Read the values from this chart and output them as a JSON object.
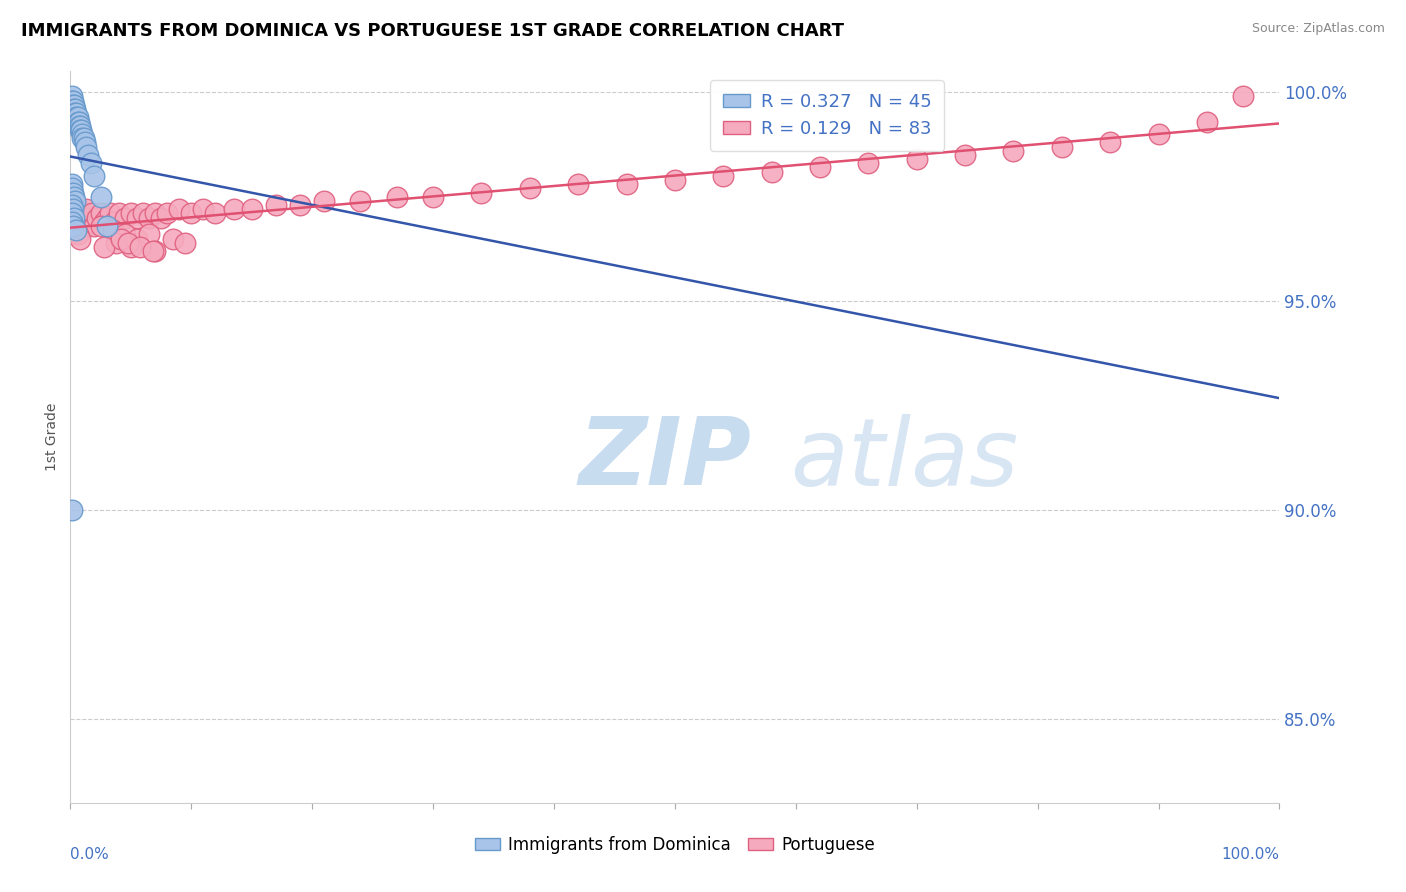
{
  "title": "IMMIGRANTS FROM DOMINICA VS PORTUGUESE 1ST GRADE CORRELATION CHART",
  "source": "Source: ZipAtlas.com",
  "ylabel": "1st Grade",
  "blue_R": 0.327,
  "blue_N": 45,
  "pink_R": 0.129,
  "pink_N": 83,
  "blue_color": "#A8C4E8",
  "pink_color": "#F5AABE",
  "blue_edge_color": "#6699CC",
  "pink_edge_color": "#E06080",
  "blue_line_color": "#3355AA",
  "pink_line_color": "#E05070",
  "legend_labels": [
    "Immigrants from Dominica",
    "Portuguese"
  ],
  "y_min": 0.83,
  "y_max": 1.005,
  "y_ticks": [
    0.85,
    0.9,
    0.95,
    1.0
  ],
  "y_tick_labels": [
    "85.0%",
    "90.0%",
    "95.0%",
    "100.0%"
  ],
  "blue_x": [
    0.001,
    0.001,
    0.001,
    0.002,
    0.002,
    0.002,
    0.002,
    0.003,
    0.003,
    0.003,
    0.004,
    0.004,
    0.004,
    0.005,
    0.005,
    0.006,
    0.006,
    0.007,
    0.007,
    0.008,
    0.008,
    0.009,
    0.01,
    0.01,
    0.011,
    0.012,
    0.013,
    0.015,
    0.017,
    0.02,
    0.025,
    0.03,
    0.001,
    0.001,
    0.002,
    0.003,
    0.004,
    0.001,
    0.002,
    0.001,
    0.003,
    0.001,
    0.002,
    0.005,
    0.001
  ],
  "blue_y": [
    0.999,
    0.998,
    0.997,
    0.998,
    0.997,
    0.996,
    0.995,
    0.997,
    0.996,
    0.995,
    0.996,
    0.995,
    0.994,
    0.995,
    0.994,
    0.994,
    0.993,
    0.993,
    0.992,
    0.992,
    0.991,
    0.991,
    0.99,
    0.989,
    0.989,
    0.988,
    0.987,
    0.985,
    0.983,
    0.98,
    0.975,
    0.968,
    0.978,
    0.977,
    0.976,
    0.975,
    0.974,
    0.973,
    0.972,
    0.971,
    0.97,
    0.969,
    0.968,
    0.967,
    0.9
  ],
  "pink_x": [
    0.001,
    0.002,
    0.003,
    0.003,
    0.004,
    0.005,
    0.005,
    0.006,
    0.007,
    0.008,
    0.009,
    0.01,
    0.011,
    0.012,
    0.013,
    0.014,
    0.015,
    0.016,
    0.018,
    0.02,
    0.022,
    0.025,
    0.028,
    0.03,
    0.033,
    0.036,
    0.04,
    0.045,
    0.05,
    0.055,
    0.06,
    0.065,
    0.07,
    0.075,
    0.08,
    0.09,
    0.1,
    0.11,
    0.12,
    0.135,
    0.15,
    0.17,
    0.19,
    0.21,
    0.24,
    0.27,
    0.3,
    0.34,
    0.38,
    0.42,
    0.46,
    0.5,
    0.54,
    0.58,
    0.62,
    0.66,
    0.7,
    0.74,
    0.78,
    0.82,
    0.86,
    0.9,
    0.94,
    0.97,
    0.002,
    0.004,
    0.006,
    0.008,
    0.025,
    0.035,
    0.045,
    0.055,
    0.065,
    0.085,
    0.095,
    0.05,
    0.07,
    0.038,
    0.028,
    0.042,
    0.048,
    0.058,
    0.068
  ],
  "pink_y": [
    0.971,
    0.972,
    0.97,
    0.968,
    0.973,
    0.969,
    0.971,
    0.97,
    0.972,
    0.968,
    0.967,
    0.97,
    0.971,
    0.969,
    0.972,
    0.968,
    0.97,
    0.969,
    0.971,
    0.968,
    0.97,
    0.971,
    0.969,
    0.97,
    0.971,
    0.969,
    0.971,
    0.97,
    0.971,
    0.97,
    0.971,
    0.97,
    0.971,
    0.97,
    0.971,
    0.972,
    0.971,
    0.972,
    0.971,
    0.972,
    0.972,
    0.973,
    0.973,
    0.974,
    0.974,
    0.975,
    0.975,
    0.976,
    0.977,
    0.978,
    0.978,
    0.979,
    0.98,
    0.981,
    0.982,
    0.983,
    0.984,
    0.985,
    0.986,
    0.987,
    0.988,
    0.99,
    0.993,
    0.999,
    0.966,
    0.967,
    0.966,
    0.965,
    0.968,
    0.967,
    0.966,
    0.965,
    0.966,
    0.965,
    0.964,
    0.963,
    0.962,
    0.964,
    0.963,
    0.965,
    0.964,
    0.963,
    0.962
  ]
}
